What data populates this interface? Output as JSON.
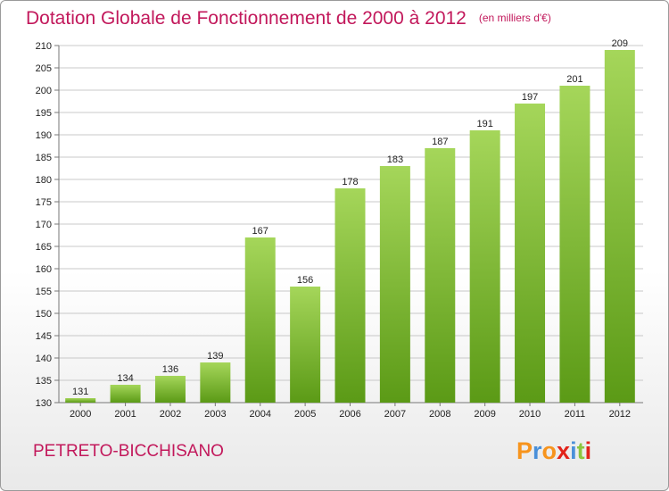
{
  "header": {
    "title": "Dotation Globale de Fonctionnement de 2000 à 2012",
    "unit": "(en milliers d'€)"
  },
  "footer": {
    "commune": "PETRETO-BICCHISANO",
    "logo": {
      "letters": [
        "P",
        "r",
        "o",
        "x",
        "i",
        "t",
        "i"
      ],
      "colors": [
        "#f7941d",
        "#4a90d9",
        "#f7941d",
        "#e2231a",
        "#4a90d9",
        "#8cc63f",
        "#e2231a"
      ]
    }
  },
  "colors": {
    "accent": "#c2185b",
    "bar_top": "#a5d65a",
    "bar_bottom": "#5b9a16",
    "grid": "#c8c8c8",
    "axis": "#777777"
  },
  "chart_data": {
    "type": "bar",
    "categories": [
      "2000",
      "2001",
      "2002",
      "2003",
      "2004",
      "2005",
      "2006",
      "2007",
      "2008",
      "2009",
      "2010",
      "2011",
      "2012"
    ],
    "values": [
      131,
      134,
      136,
      139,
      167,
      156,
      178,
      183,
      187,
      191,
      197,
      201,
      209
    ],
    "ylim": [
      130,
      210
    ],
    "yticks": [
      130,
      135,
      140,
      145,
      150,
      155,
      160,
      165,
      170,
      175,
      180,
      185,
      190,
      195,
      200,
      205,
      210
    ],
    "grid": true,
    "data_labels": true
  }
}
